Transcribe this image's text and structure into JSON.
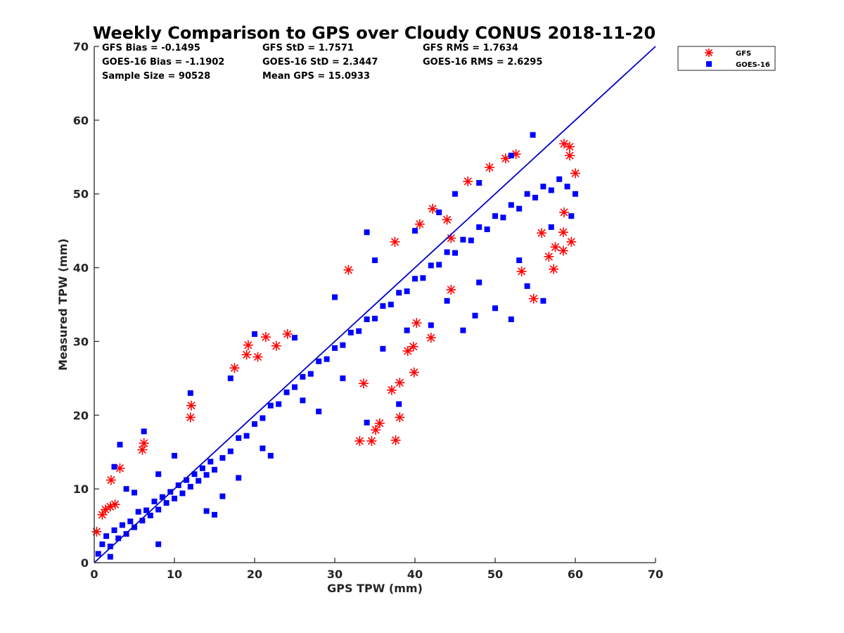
{
  "chart_data": {
    "type": "scatter",
    "title": "Weekly Comparison to GPS over Cloudy CONUS 2018-11-20",
    "xlabel": "GPS TPW (mm)",
    "ylabel": "Measured TPW (mm)",
    "xlim": [
      0,
      70
    ],
    "ylim": [
      0,
      70
    ],
    "xticks": [
      "0",
      "10",
      "20",
      "30",
      "40",
      "50",
      "60",
      "70"
    ],
    "yticks": [
      "0",
      "10",
      "20",
      "30",
      "40",
      "50",
      "60",
      "70"
    ],
    "grid": false,
    "legend_position": "outside top-right",
    "stats": [
      [
        "GFS Bias = -0.1495",
        "GFS StD = 1.7571",
        "GFS RMS = 1.7634"
      ],
      [
        "GOES-16 Bias = -1.1902",
        "GOES-16 StD = 2.3447",
        "GOES-16 RMS = 2.6295"
      ],
      [
        "Sample Size = 90528",
        "Mean GPS = 15.0933",
        ""
      ]
    ],
    "reference_line": {
      "x": [
        0,
        70
      ],
      "y": [
        0,
        70
      ],
      "color": "#0000cc"
    },
    "series": [
      {
        "name": "GFS",
        "marker": "asterisk",
        "color": "#ff0000",
        "points": [
          [
            0.3,
            4.2
          ],
          [
            1.0,
            6.5
          ],
          [
            1.4,
            7.2
          ],
          [
            2.0,
            7.6
          ],
          [
            2.6,
            7.9
          ],
          [
            2.1,
            11.2
          ],
          [
            3.2,
            12.8
          ],
          [
            6.2,
            16.2
          ],
          [
            6.0,
            15.3
          ],
          [
            12.1,
            21.3
          ],
          [
            12.0,
            19.7
          ],
          [
            17.5,
            26.4
          ],
          [
            19.0,
            28.2
          ],
          [
            19.2,
            29.5
          ],
          [
            20.4,
            27.9
          ],
          [
            22.7,
            29.4
          ],
          [
            21.4,
            30.6
          ],
          [
            24.1,
            31.0
          ],
          [
            31.7,
            39.7
          ],
          [
            33.1,
            16.5
          ],
          [
            34.6,
            16.5
          ],
          [
            33.6,
            24.3
          ],
          [
            35.1,
            18.0
          ],
          [
            35.6,
            18.9
          ],
          [
            37.1,
            23.4
          ],
          [
            38.1,
            19.7
          ],
          [
            37.6,
            16.6
          ],
          [
            38.1,
            24.4
          ],
          [
            39.9,
            25.8
          ],
          [
            39.1,
            28.7
          ],
          [
            39.8,
            29.3
          ],
          [
            42.0,
            30.5
          ],
          [
            40.2,
            32.5
          ],
          [
            44.5,
            37.0
          ],
          [
            44.5,
            44.0
          ],
          [
            37.5,
            43.5
          ],
          [
            40.6,
            45.9
          ],
          [
            42.2,
            48.0
          ],
          [
            46.6,
            51.7
          ],
          [
            49.3,
            53.6
          ],
          [
            51.3,
            54.8
          ],
          [
            52.6,
            55.4
          ],
          [
            53.3,
            39.5
          ],
          [
            54.8,
            35.8
          ],
          [
            57.3,
            39.8
          ],
          [
            57.5,
            42.8
          ],
          [
            58.5,
            42.3
          ],
          [
            58.5,
            44.8
          ],
          [
            59.5,
            43.5
          ],
          [
            58.6,
            47.5
          ],
          [
            60.0,
            52.8
          ],
          [
            59.3,
            55.2
          ],
          [
            58.6,
            56.8
          ],
          [
            59.3,
            56.4
          ],
          [
            44.0,
            46.5
          ],
          [
            56.7,
            41.5
          ],
          [
            55.8,
            44.7
          ]
        ]
      },
      {
        "name": "GOES-16",
        "marker": "square",
        "color": "#0000ff",
        "points": [
          [
            0.5,
            1.2
          ],
          [
            1.0,
            2.5
          ],
          [
            1.5,
            3.6
          ],
          [
            2.0,
            2.2
          ],
          [
            2.5,
            4.4
          ],
          [
            3.0,
            3.3
          ],
          [
            3.5,
            5.1
          ],
          [
            4.0,
            3.9
          ],
          [
            4.5,
            5.6
          ],
          [
            5.0,
            4.8
          ],
          [
            5.5,
            6.9
          ],
          [
            6.0,
            5.7
          ],
          [
            6.5,
            7.1
          ],
          [
            7.0,
            6.4
          ],
          [
            7.5,
            8.3
          ],
          [
            8.0,
            7.2
          ],
          [
            8.5,
            8.9
          ],
          [
            9.0,
            8.1
          ],
          [
            9.5,
            9.6
          ],
          [
            10.0,
            8.7
          ],
          [
            10.5,
            10.5
          ],
          [
            11.0,
            9.4
          ],
          [
            11.5,
            11.2
          ],
          [
            12.0,
            10.3
          ],
          [
            12.5,
            12.0
          ],
          [
            13.0,
            11.1
          ],
          [
            13.5,
            12.8
          ],
          [
            14.0,
            11.9
          ],
          [
            14.5,
            13.7
          ],
          [
            15.0,
            12.6
          ],
          [
            16.0,
            14.2
          ],
          [
            17.0,
            15.1
          ],
          [
            18.0,
            16.9
          ],
          [
            19.0,
            17.2
          ],
          [
            20.0,
            18.8
          ],
          [
            21.0,
            19.6
          ],
          [
            22.0,
            21.3
          ],
          [
            23.0,
            21.5
          ],
          [
            24.0,
            23.1
          ],
          [
            25.0,
            23.8
          ],
          [
            26.0,
            25.2
          ],
          [
            27.0,
            25.6
          ],
          [
            28.0,
            27.3
          ],
          [
            29.0,
            27.6
          ],
          [
            30.0,
            29.1
          ],
          [
            31.0,
            29.5
          ],
          [
            32.0,
            31.2
          ],
          [
            33.0,
            31.4
          ],
          [
            34.0,
            33.0
          ],
          [
            35.0,
            33.1
          ],
          [
            36.0,
            34.8
          ],
          [
            37.0,
            35.0
          ],
          [
            38.0,
            36.6
          ],
          [
            39.0,
            36.8
          ],
          [
            40.0,
            38.5
          ],
          [
            41.0,
            38.6
          ],
          [
            42.0,
            40.3
          ],
          [
            43.0,
            40.4
          ],
          [
            44.0,
            42.1
          ],
          [
            45.0,
            42.0
          ],
          [
            46.0,
            43.8
          ],
          [
            47.0,
            43.7
          ],
          [
            48.0,
            45.5
          ],
          [
            49.0,
            45.2
          ],
          [
            50.0,
            47.0
          ],
          [
            51.0,
            46.8
          ],
          [
            52.0,
            48.5
          ],
          [
            53.0,
            48.0
          ],
          [
            54.0,
            50.0
          ],
          [
            55.0,
            49.5
          ],
          [
            56.0,
            51.0
          ],
          [
            57.0,
            50.5
          ],
          [
            58.0,
            52.0
          ],
          [
            59.0,
            51.0
          ],
          [
            3.2,
            16.0
          ],
          [
            6.2,
            17.8
          ],
          [
            12.0,
            23.0
          ],
          [
            17.0,
            25.0
          ],
          [
            20.0,
            31.0
          ],
          [
            34.0,
            44.8
          ],
          [
            43.0,
            47.5
          ],
          [
            52.0,
            55.2
          ],
          [
            54.7,
            58.0
          ],
          [
            56.0,
            35.5
          ],
          [
            52.0,
            33.0
          ],
          [
            50.0,
            34.5
          ],
          [
            46.0,
            31.5
          ],
          [
            42.0,
            32.2
          ],
          [
            38.0,
            21.5
          ],
          [
            34.0,
            19.0
          ],
          [
            28.0,
            20.5
          ],
          [
            22.0,
            14.5
          ],
          [
            16.0,
            9.0
          ],
          [
            14.0,
            7.0
          ],
          [
            8.0,
            2.5
          ],
          [
            2.0,
            0.8
          ],
          [
            59.5,
            47.0
          ],
          [
            60.0,
            50.0
          ],
          [
            25.0,
            30.5
          ],
          [
            30.0,
            36.0
          ],
          [
            35.0,
            41.0
          ],
          [
            40.0,
            45.0
          ],
          [
            45.0,
            50.0
          ],
          [
            48.0,
            51.5
          ],
          [
            10.0,
            14.5
          ],
          [
            5.0,
            9.5
          ],
          [
            8.0,
            12.0
          ],
          [
            4.0,
            10.0
          ],
          [
            2.5,
            13.0
          ],
          [
            15.0,
            6.5
          ],
          [
            18.0,
            11.5
          ],
          [
            21.0,
            15.5
          ],
          [
            26.0,
            22.0
          ],
          [
            31.0,
            25.0
          ],
          [
            36.0,
            29.0
          ],
          [
            39.0,
            31.5
          ],
          [
            44.0,
            35.5
          ],
          [
            48.0,
            38.0
          ],
          [
            53.0,
            41.0
          ],
          [
            57.0,
            45.5
          ],
          [
            47.5,
            33.5
          ],
          [
            54.0,
            37.5
          ]
        ]
      }
    ]
  }
}
